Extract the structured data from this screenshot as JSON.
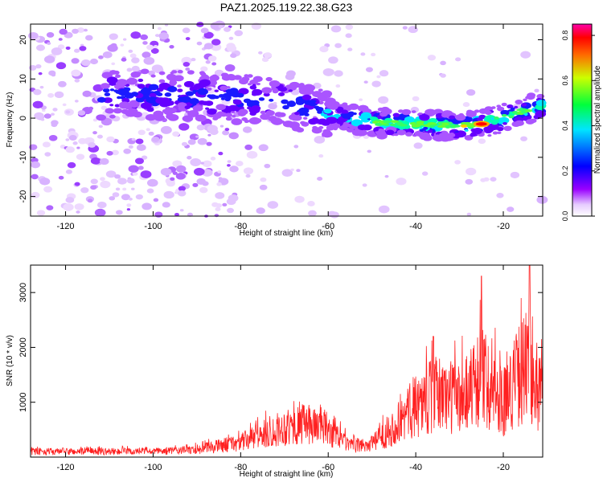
{
  "title": "PAZ1.2025.119.22.38.G23",
  "chart_data": [
    {
      "type": "heatmap",
      "xlabel": "Height of straight line (km)",
      "ylabel": "Frequency (Hz)",
      "xlim": [
        -128,
        -11
      ],
      "ylim": [
        -25,
        24
      ],
      "xticks": [
        -120,
        -100,
        -80,
        -60,
        -40,
        -20
      ],
      "yticks": [
        -20,
        -10,
        0,
        10,
        20
      ],
      "colorbar": {
        "label": "Normalized spectral amplitude",
        "range": [
          0,
          0.85
        ],
        "ticks": [
          0.0,
          0.2,
          0.4,
          0.6,
          0.8
        ],
        "tick_labels": [
          "0.0",
          "0.2",
          "0.4",
          "0.6",
          "0.8"
        ],
        "colormap": "rainbow (white-violet-blue-cyan-green-yellow-red-magenta)"
      },
      "ridge": {
        "description": "dominant Doppler frequency track",
        "points": [
          {
            "x": -110,
            "y": 6
          },
          {
            "x": -95,
            "y": 6
          },
          {
            "x": -80,
            "y": 5
          },
          {
            "x": -70,
            "y": 4
          },
          {
            "x": -60,
            "y": 1
          },
          {
            "x": -50,
            "y": -1
          },
          {
            "x": -40,
            "y": -1.5
          },
          {
            "x": -30,
            "y": -2
          },
          {
            "x": -25,
            "y": -1.5
          },
          {
            "x": -20,
            "y": 0
          },
          {
            "x": -15,
            "y": 2
          },
          {
            "x": -11,
            "y": 3
          }
        ],
        "peak": {
          "x": -25,
          "y": -1.5,
          "value": 0.85
        }
      }
    },
    {
      "type": "line",
      "xlabel": "Height of straight line (km)",
      "ylabel": "SNR (10 * v/v)",
      "xlim": [
        -128,
        -11
      ],
      "ylim": [
        0,
        3500
      ],
      "xticks": [
        -120,
        -100,
        -80,
        -60,
        -40,
        -20
      ],
      "yticks": [
        1000,
        2000,
        3000
      ],
      "color": "#ff2020",
      "envelope": [
        {
          "x": -128,
          "y": 150
        },
        {
          "x": -100,
          "y": 150
        },
        {
          "x": -90,
          "y": 200
        },
        {
          "x": -80,
          "y": 400
        },
        {
          "x": -70,
          "y": 800
        },
        {
          "x": -62,
          "y": 900
        },
        {
          "x": -55,
          "y": 300
        },
        {
          "x": -50,
          "y": 350
        },
        {
          "x": -45,
          "y": 800
        },
        {
          "x": -40,
          "y": 1400
        },
        {
          "x": -35,
          "y": 1700
        },
        {
          "x": -30,
          "y": 1600
        },
        {
          "x": -25,
          "y": 2200
        },
        {
          "x": -20,
          "y": 1500
        },
        {
          "x": -15,
          "y": 2500
        },
        {
          "x": -11,
          "y": 1600
        }
      ],
      "spikes": [
        {
          "x": -36,
          "y": 2200
        },
        {
          "x": -25,
          "y": 3300
        },
        {
          "x": -14,
          "y": 3500
        }
      ]
    }
  ]
}
